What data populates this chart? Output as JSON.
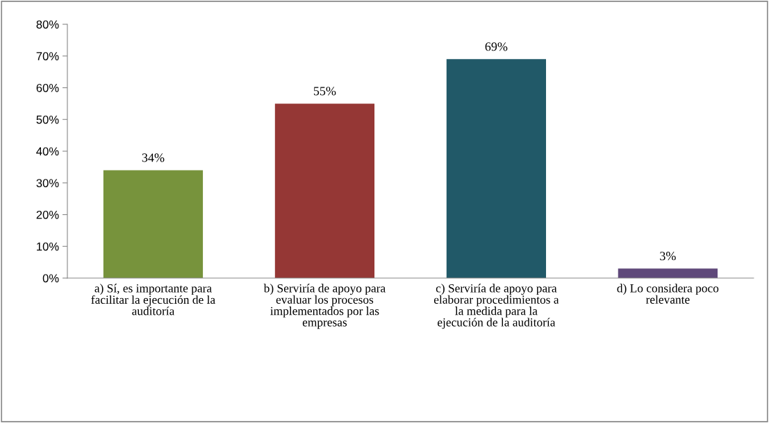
{
  "chart_data": {
    "type": "bar",
    "categories": [
      "a) Sí, es importante para\nfacilitar la ejecución de la\nauditoría",
      "b) Serviría de apoyo para\nevaluar los procesos\nimplementados por las\nempresas",
      "c) Serviría de apoyo para\nelaborar procedimientos a\nla medida para la\nejecución de la auditoría",
      "d) Lo considera poco\nrelevante"
    ],
    "values": [
      34,
      55,
      69,
      3
    ],
    "colors": [
      "#77933c",
      "#953735",
      "#215968",
      "#5f497a"
    ],
    "value_labels": [
      "34%",
      "55%",
      "69%",
      "3%"
    ],
    "ylim": [
      0,
      80
    ],
    "yticks": [
      {
        "value": 0,
        "label": "0%"
      },
      {
        "value": 10,
        "label": "10%"
      },
      {
        "value": 20,
        "label": "20%"
      },
      {
        "value": 30,
        "label": "30%"
      },
      {
        "value": 40,
        "label": "40%"
      },
      {
        "value": 50,
        "label": "50%"
      },
      {
        "value": 60,
        "label": "60%"
      },
      {
        "value": 70,
        "label": "70%"
      },
      {
        "value": 80,
        "label": "80%"
      }
    ],
    "grid": false,
    "legend": false
  }
}
